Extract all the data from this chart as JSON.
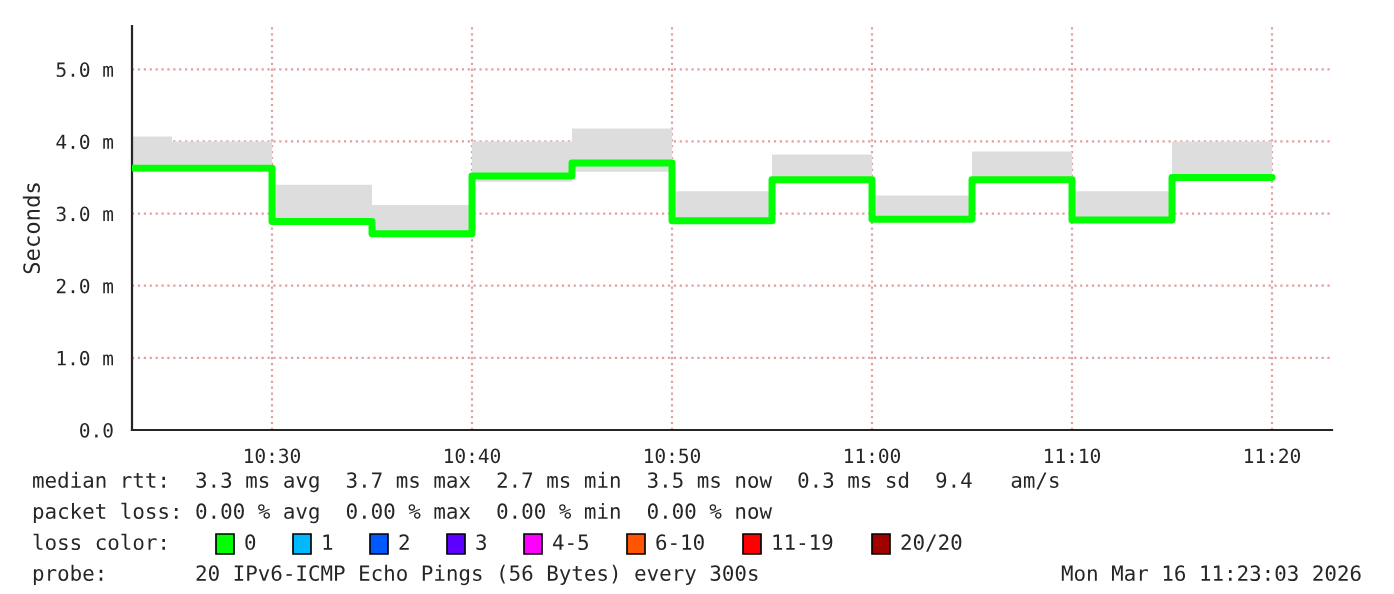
{
  "chart_data": {
    "type": "step",
    "ylabel": "Seconds",
    "x": [
      "2026-03-16T10:23",
      "2026-03-16T10:25",
      "2026-03-16T10:30",
      "2026-03-16T10:35",
      "2026-03-16T10:40",
      "2026-03-16T10:45",
      "2026-03-16T10:50",
      "2026-03-16T10:55",
      "2026-03-16T11:00",
      "2026-03-16T11:05",
      "2026-03-16T11:10",
      "2026-03-16T11:15",
      "2026-03-16T11:20"
    ],
    "series": [
      {
        "color": "#00ff00",
        "values": [
          3.63,
          3.63,
          2.89,
          2.72,
          3.52,
          3.7,
          2.9,
          3.47,
          2.92,
          3.47,
          2.91,
          3.5,
          3.5
        ],
        "lower": [
          3.58,
          3.58,
          2.85,
          2.69,
          3.44,
          3.58,
          2.86,
          3.42,
          2.88,
          3.43,
          2.88,
          3.45,
          3.45
        ],
        "upper": [
          4.07,
          4.0,
          3.4,
          3.12,
          4.0,
          4.18,
          3.31,
          3.82,
          3.25,
          3.86,
          3.31,
          4.0,
          4.0
        ]
      }
    ],
    "xlim": [
      "2026-03-16T10:23",
      "2026-03-16T11:23"
    ],
    "xticks": [
      {
        "value": "2026-03-16T10:30",
        "label": "10:30"
      },
      {
        "value": "2026-03-16T10:40",
        "label": "10:40"
      },
      {
        "value": "2026-03-16T10:50",
        "label": "10:50"
      },
      {
        "value": "2026-03-16T11:00",
        "label": "11:00"
      },
      {
        "value": "2026-03-16T11:10",
        "label": "11:10"
      },
      {
        "value": "2026-03-16T11:20",
        "label": "11:20"
      }
    ],
    "ylim": [
      0,
      5.6
    ],
    "yticks": [
      {
        "value": 0,
        "label": "0.0"
      },
      {
        "value": 1,
        "label": "1.0 m"
      },
      {
        "value": 2,
        "label": "2.0 m"
      },
      {
        "value": 3,
        "label": "3.0 m"
      },
      {
        "value": 4,
        "label": "4.0 m"
      },
      {
        "value": 5,
        "label": "5.0 m"
      }
    ],
    "grid": true,
    "legend": false,
    "annotations": [
      "median rtt:  3.3 ms avg  3.7 ms max  2.7 ms min  3.5 ms now  0.3 ms sd  9.4   am/s",
      "packet loss: 0.00 % avg  0.00 % max  0.00 % min  0.00 % now",
      "loss color:",
      "0",
      "1",
      "2",
      "3",
      "4-5",
      "6-10",
      "11-19",
      "20/20",
      "probe:       20 IPv6-ICMP Echo Pings (56 Bytes) every 300s",
      "Mon Mar 16 11:23:03 2026"
    ]
  }
}
